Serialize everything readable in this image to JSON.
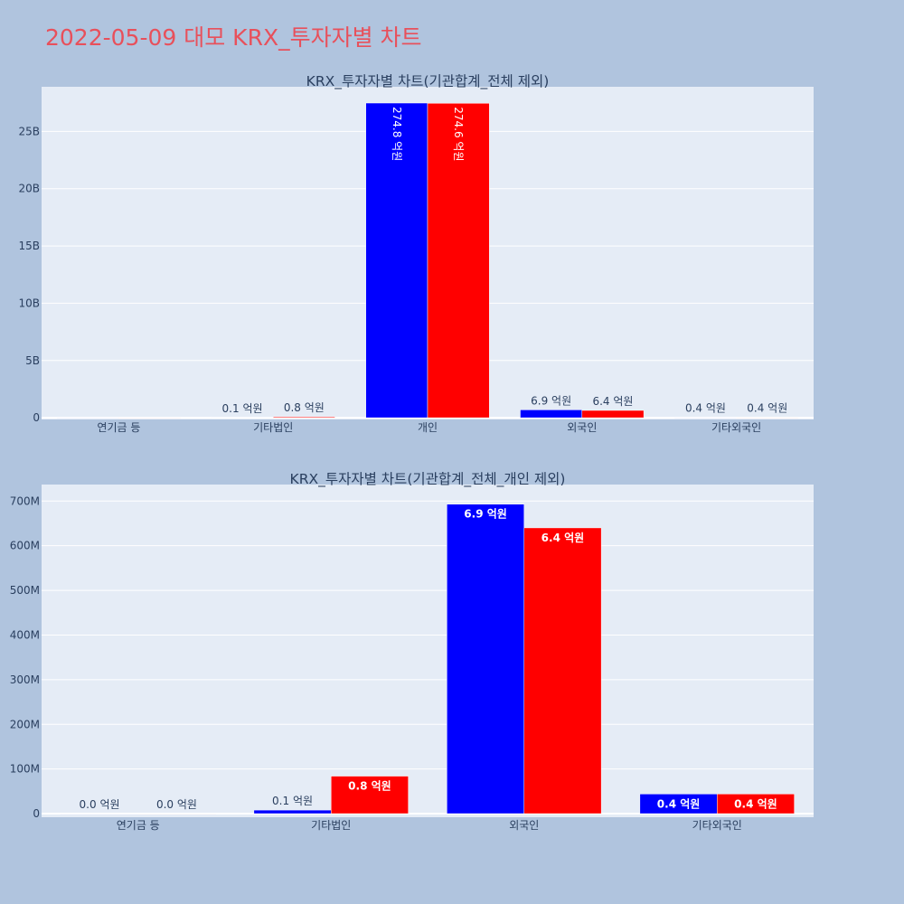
{
  "title": "2022-05-09 대모 KRX_투자자별 차트",
  "chart_data": [
    {
      "type": "bar",
      "title": "KRX_투자자별 차트(기관합계_전체 제외)",
      "categories": [
        "연기금 등",
        "기타법인",
        "개인",
        "외국인",
        "기타외국인"
      ],
      "series": [
        {
          "color": "#0000ff",
          "values": [
            0,
            10000000,
            27480000000,
            690000000,
            40000000
          ],
          "labels": [
            "",
            "0.1 억원",
            "274.8 억원",
            "6.9 억원",
            "0.4 억원"
          ]
        },
        {
          "color": "#ff0000",
          "values": [
            0,
            80000000,
            27460000000,
            640000000,
            40000000
          ],
          "labels": [
            "",
            "0.8 억원",
            "274.6 억원",
            "6.4 억원",
            "0.4 억원"
          ]
        }
      ],
      "ylim": [
        -150000000,
        28900000000
      ],
      "yticks": [
        0,
        5000000000,
        10000000000,
        15000000000,
        20000000000,
        25000000000
      ],
      "ytick_labels": [
        "0",
        "5B",
        "10B",
        "15B",
        "20B",
        "25B"
      ],
      "grid": true
    },
    {
      "type": "bar",
      "title": "KRX_투자자별 차트(기관합계_전체_개인 제외)",
      "categories": [
        "연기금 등",
        "기타법인",
        "외국인",
        "기타외국인"
      ],
      "series": [
        {
          "color": "#0000ff",
          "values": [
            0,
            8000000,
            693000000,
            44000000
          ],
          "labels": [
            "0.0 억원",
            "0.1 억원",
            "6.9 억원",
            "0.4 억원"
          ]
        },
        {
          "color": "#ff0000",
          "values": [
            0,
            84000000,
            640000000,
            44000000
          ],
          "labels": [
            "0.0 억원",
            "0.8 억원",
            "6.4 억원",
            "0.4 억원"
          ]
        }
      ],
      "ylim": [
        -8000000,
        737000000
      ],
      "yticks": [
        0,
        100000000,
        200000000,
        300000000,
        400000000,
        500000000,
        600000000,
        700000000
      ],
      "ytick_labels": [
        "0",
        "100M",
        "200M",
        "300M",
        "400M",
        "500M",
        "600M",
        "700M"
      ],
      "grid": true
    }
  ]
}
